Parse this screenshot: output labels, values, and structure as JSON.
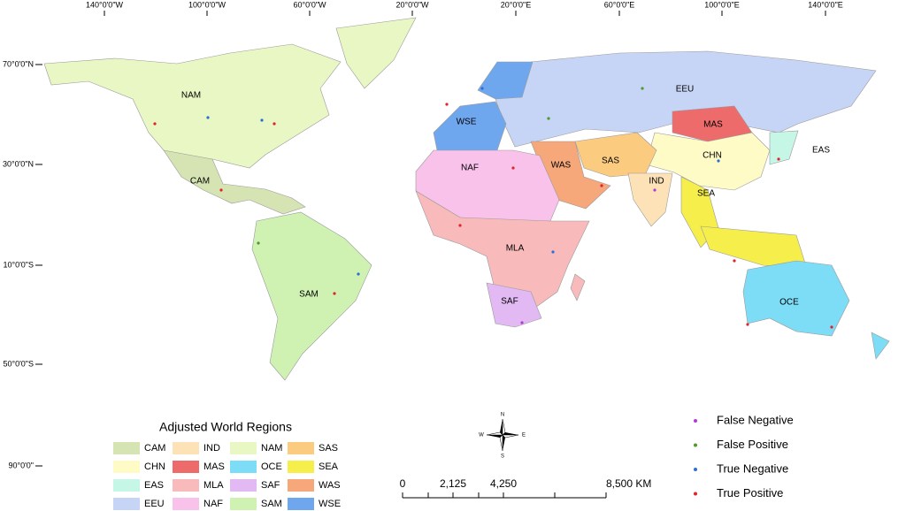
{
  "graticule": {
    "longitudes": [
      "140°0'0\"W",
      "100°0'0\"W",
      "60°0'0\"W",
      "20°0'0\"W",
      "20°0'0\"E",
      "60°0'0\"E",
      "100°0'0\"E",
      "140°0'0\"E"
    ],
    "latitudes": [
      "70°0'0\"N",
      "30°0'0\"N",
      "10°0'0\"S",
      "50°0'0\"S",
      "90°0'0\""
    ]
  },
  "map_labels": [
    "NAM",
    "CAM",
    "SAM",
    "WSE",
    "EEU",
    "MAS",
    "CHN",
    "EAS",
    "SAS",
    "WAS",
    "IND",
    "SEA",
    "NAF",
    "MLA",
    "SAF",
    "OCE"
  ],
  "legend": {
    "title": "Adjusted World Regions",
    "items": [
      {
        "label": "CAM",
        "color": "#d6e4b3"
      },
      {
        "label": "CHN",
        "color": "#fffbc6"
      },
      {
        "label": "EAS",
        "color": "#c6f6e6"
      },
      {
        "label": "EEU",
        "color": "#c6d5f5"
      },
      {
        "label": "IND",
        "color": "#fde2b8"
      },
      {
        "label": "MAS",
        "color": "#ee6b6b"
      },
      {
        "label": "MLA",
        "color": "#f8baba"
      },
      {
        "label": "NAF",
        "color": "#f9c2ea"
      },
      {
        "label": "NAM",
        "color": "#e8f7c4"
      },
      {
        "label": "OCE",
        "color": "#7ddcf6"
      },
      {
        "label": "SAF",
        "color": "#e2b9f3"
      },
      {
        "label": "SAM",
        "color": "#cff2b3"
      },
      {
        "label": "SAS",
        "color": "#fbcb80"
      },
      {
        "label": "SEA",
        "color": "#f6ee4a"
      },
      {
        "label": "WAS",
        "color": "#f6a87b"
      },
      {
        "label": "WSE",
        "color": "#6fa7ee"
      }
    ]
  },
  "scale_bar": {
    "labels": [
      "0",
      "2,125",
      "4,250",
      "8,500 KM"
    ]
  },
  "north_arrow": {
    "labels": [
      "N",
      "E",
      "S",
      "W"
    ]
  },
  "point_legend": [
    {
      "label": "False Negative",
      "color": "#b23ad6"
    },
    {
      "label": "False Positive",
      "color": "#4e9a2a"
    },
    {
      "label": "True Negative",
      "color": "#2a6fd6"
    },
    {
      "label": "True Positive",
      "color": "#e0242a"
    }
  ]
}
